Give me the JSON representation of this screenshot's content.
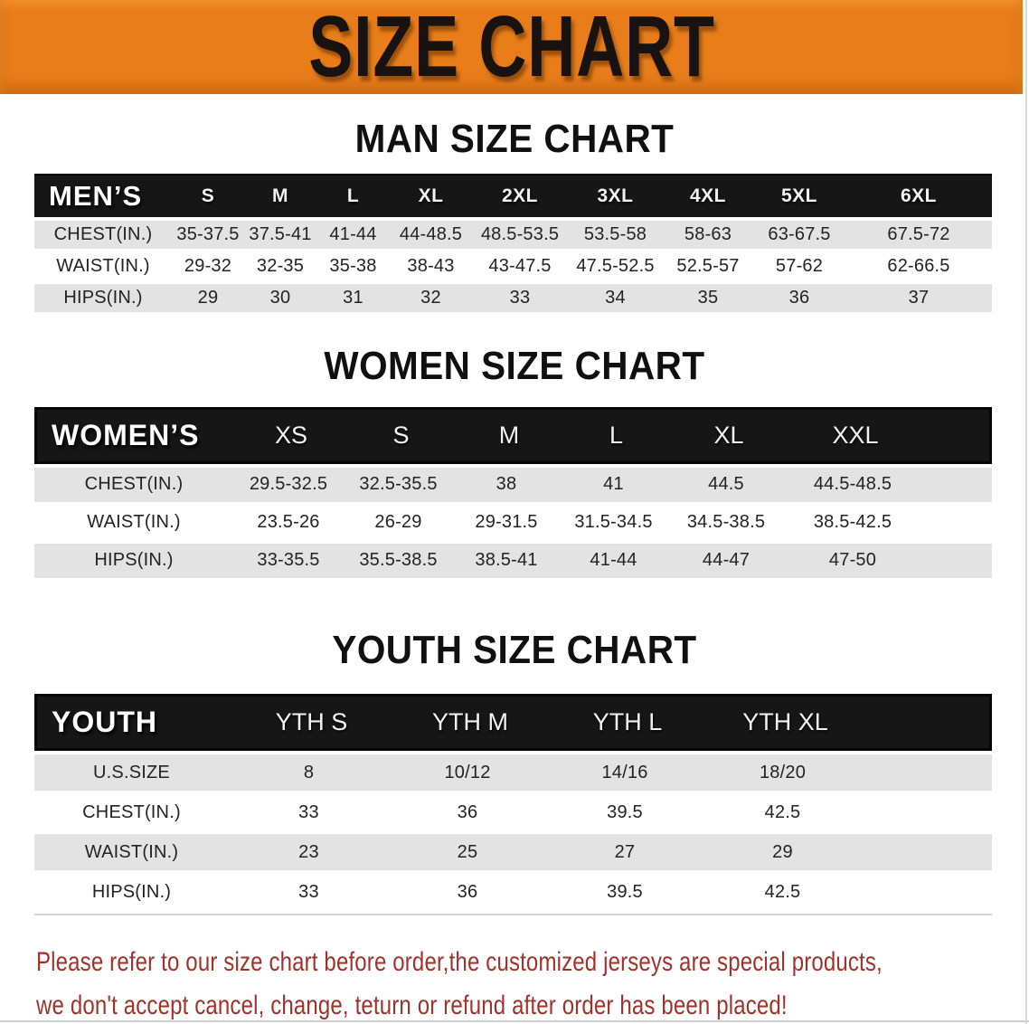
{
  "banner": {
    "title": "SIZE CHART"
  },
  "sections": [
    {
      "id": "men",
      "heading": "MAN SIZE CHART",
      "group_label": "MEN’S",
      "sizes": [
        "S",
        "M",
        "L",
        "XL",
        "2XL",
        "3XL",
        "4XL",
        "5XL",
        "6XL"
      ],
      "rows": [
        {
          "label": "CHEST(IN.)",
          "values": [
            "35-37.5",
            "37.5-41",
            "41-44",
            "44-48.5",
            "48.5-53.5",
            "53.5-58",
            "58-63",
            "63-67.5",
            "67.5-72"
          ]
        },
        {
          "label": "WAIST(IN.)",
          "values": [
            "29-32",
            "32-35",
            "35-38",
            "38-43",
            "43-47.5",
            "47.5-52.5",
            "52.5-57",
            "57-62",
            "62-66.5"
          ]
        },
        {
          "label": "HIPS(IN.)",
          "values": [
            "29",
            "30",
            "31",
            "32",
            "33",
            "34",
            "35",
            "36",
            "37"
          ]
        }
      ]
    },
    {
      "id": "women",
      "heading": "WOMEN SIZE CHART",
      "group_label": "WOMEN’S",
      "sizes": [
        "XS",
        "S",
        "M",
        "L",
        "XL",
        "XXL"
      ],
      "rows": [
        {
          "label": "CHEST(IN.)",
          "values": [
            "29.5-32.5",
            "32.5-35.5",
            "38",
            "41",
            "44.5",
            "44.5-48.5"
          ]
        },
        {
          "label": "WAIST(IN.)",
          "values": [
            "23.5-26",
            "26-29",
            "29-31.5",
            "31.5-34.5",
            "34.5-38.5",
            "38.5-42.5"
          ]
        },
        {
          "label": "HIPS(IN.)",
          "values": [
            "33-35.5",
            "35.5-38.5",
            "38.5-41",
            "41-44",
            "44-47",
            "47-50"
          ]
        }
      ]
    },
    {
      "id": "youth",
      "heading": "YOUTH SIZE CHART",
      "group_label": "YOUTH",
      "sizes": [
        "YTH S",
        "YTH M",
        "YTH L",
        "YTH XL"
      ],
      "rows": [
        {
          "label": "U.S.SIZE",
          "values": [
            "8",
            "10/12",
            "14/16",
            "18/20"
          ]
        },
        {
          "label": "CHEST(IN.)",
          "values": [
            "33",
            "36",
            "39.5",
            "42.5"
          ]
        },
        {
          "label": "WAIST(IN.)",
          "values": [
            "23",
            "25",
            "27",
            "29"
          ]
        },
        {
          "label": "HIPS(IN.)",
          "values": [
            "33",
            "36",
            "39.5",
            "42.5"
          ]
        }
      ]
    }
  ],
  "disclaimer": {
    "lines": [
      "Please refer to our size chart before order,the customized jerseys are special products,",
      "we don't accept cancel, change, teturn or refund after order has been placed!"
    ]
  },
  "colors": {
    "banner_bg": "#e87d1a",
    "header_bg": "#161616",
    "row_gray": "#e3e3e3",
    "text_dark": "#232323",
    "disclaimer_red": "#a0322b"
  }
}
